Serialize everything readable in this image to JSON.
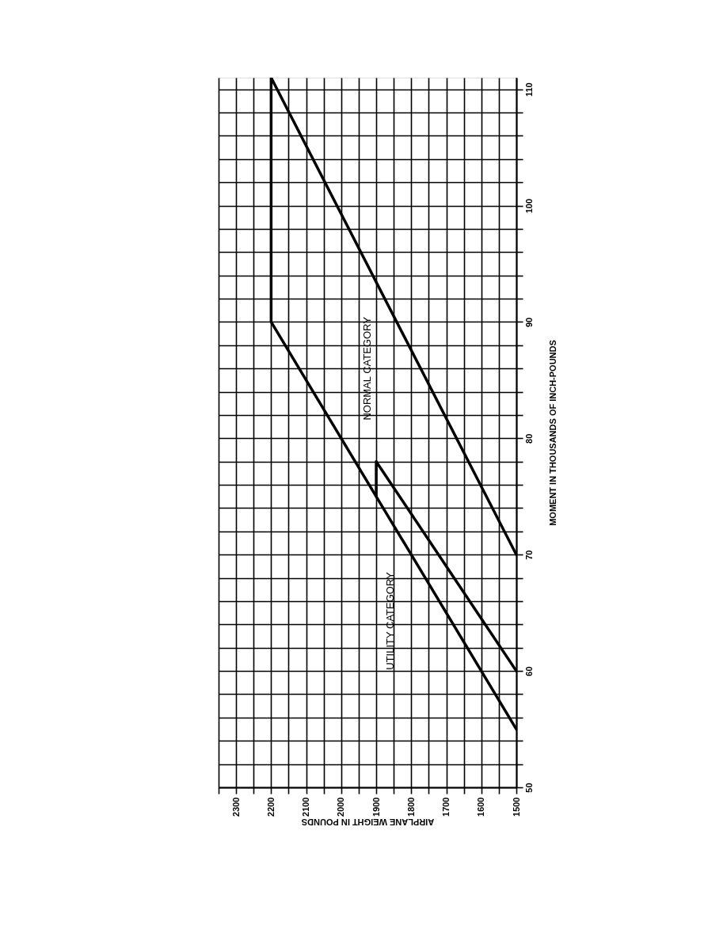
{
  "chart_data": {
    "type": "line",
    "xlabel": "AIRPLANE WEIGHT IN POUNDS",
    "ylabel": "MOMENT IN THOUSANDS OF INCH-POUNDS",
    "series": [
      {
        "color": "#000000",
        "x": [
          1500,
          2200,
          2200,
          1500
        ],
        "values": [
          55,
          90,
          111,
          70
        ]
      },
      {
        "color": "#000000",
        "x": [
          1500,
          1900,
          1900
        ],
        "values": [
          60,
          78,
          75
        ]
      }
    ],
    "xlim": [
      2350,
      1500
    ],
    "xticks": [
      {
        "value": 2350,
        "label": null
      },
      2300,
      {
        "value": 2250,
        "label": null
      },
      2200,
      {
        "value": 2150,
        "label": null
      },
      2100,
      {
        "value": 2050,
        "label": null
      },
      2000,
      {
        "value": 1950,
        "label": null
      },
      1900,
      {
        "value": 1850,
        "label": null
      },
      1800,
      {
        "value": 1750,
        "label": null
      },
      1700,
      {
        "value": 1650,
        "label": null
      },
      1600,
      {
        "value": 1550,
        "label": null
      },
      1500
    ],
    "ylim": [
      50,
      111
    ],
    "yticks": [
      50,
      {
        "value": 52,
        "label": null
      },
      {
        "value": 54,
        "label": null
      },
      {
        "value": 56,
        "label": null
      },
      {
        "value": 58,
        "label": null
      },
      60,
      {
        "value": 62,
        "label": null
      },
      {
        "value": 64,
        "label": null
      },
      {
        "value": 66,
        "label": null
      },
      {
        "value": 68,
        "label": null
      },
      70,
      {
        "value": 72,
        "label": null
      },
      {
        "value": 74,
        "label": null
      },
      {
        "value": 76,
        "label": null
      },
      {
        "value": 78,
        "label": null
      },
      80,
      {
        "value": 82,
        "label": null
      },
      {
        "value": 84,
        "label": null
      },
      {
        "value": 86,
        "label": null
      },
      {
        "value": 88,
        "label": null
      },
      90,
      {
        "value": 92,
        "label": null
      },
      {
        "value": 94,
        "label": null
      },
      {
        "value": 96,
        "label": null
      },
      {
        "value": 98,
        "label": null
      },
      100,
      {
        "value": 102,
        "label": null
      },
      {
        "value": 104,
        "label": null
      },
      {
        "value": 106,
        "label": null
      },
      {
        "value": 108,
        "label": null
      },
      110
    ],
    "grid": true,
    "line_style": "solid",
    "annotations": [
      "NORMAL CATEGORY",
      {
        "text": "UTILITY CATEGORY",
        "x": 1800,
        "y": 70
      }
    ]
  }
}
